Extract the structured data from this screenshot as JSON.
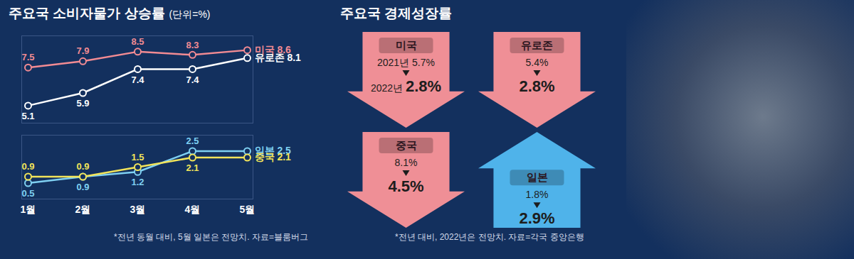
{
  "chart_data": [
    {
      "type": "line",
      "title": "주요국 소비자물가 상승률",
      "subtitle": "(단위=%)",
      "categories": [
        "1월",
        "2월",
        "3월",
        "4월",
        "5월"
      ],
      "series": [
        {
          "name": "미국",
          "color": "#f28b93",
          "values": [
            7.5,
            7.9,
            8.5,
            8.3,
            8.6
          ]
        },
        {
          "name": "유로존",
          "color": "#ffffff",
          "values": [
            5.1,
            5.9,
            7.4,
            7.4,
            8.1
          ]
        }
      ],
      "ylim": [
        4,
        9.5
      ],
      "yticks": [],
      "tick_labels": false,
      "data_labels": true,
      "marker": "circle"
    },
    {
      "type": "line",
      "categories": [
        "1월",
        "2월",
        "3월",
        "4월",
        "5월"
      ],
      "series": [
        {
          "name": "일본",
          "color": "#7fd0f2",
          "values": [
            0.5,
            0.9,
            1.2,
            2.5,
            2.5
          ]
        },
        {
          "name": "중국",
          "color": "#f2e45a",
          "values": [
            0.9,
            0.9,
            1.5,
            2.1,
            2.1
          ]
        }
      ],
      "ylim": [
        -0.5,
        3.5
      ],
      "yticks": [],
      "tick_labels": "x",
      "data_labels": true,
      "marker": "circle",
      "note": "*전년 동월 대비, 5월 일본은 전망치. 자료=블룸버그"
    },
    {
      "type": "arrows",
      "title": "주요국 경제성장률",
      "categories": [
        "미국",
        "유로존",
        "중국",
        "일본"
      ],
      "series": [
        {
          "name": "2021년",
          "values": [
            5.7,
            5.4,
            8.1,
            1.8
          ],
          "value_labels": [
            "5.7%",
            "5.4%",
            "8.1%",
            "1.8%"
          ]
        },
        {
          "name": "2022년",
          "values": [
            2.8,
            2.8,
            4.5,
            2.9
          ],
          "value_labels": [
            "2.8%",
            "2.8%",
            "4.5%",
            "2.9%"
          ]
        }
      ],
      "colors": [
        "#ef8f96",
        "#ef8f96",
        "#ef8f96",
        "#4fb3ea"
      ],
      "data_labels": true,
      "note": "*전년 대비, 2022년은 전망치. 자료=각국 중앙은행"
    }
  ]
}
